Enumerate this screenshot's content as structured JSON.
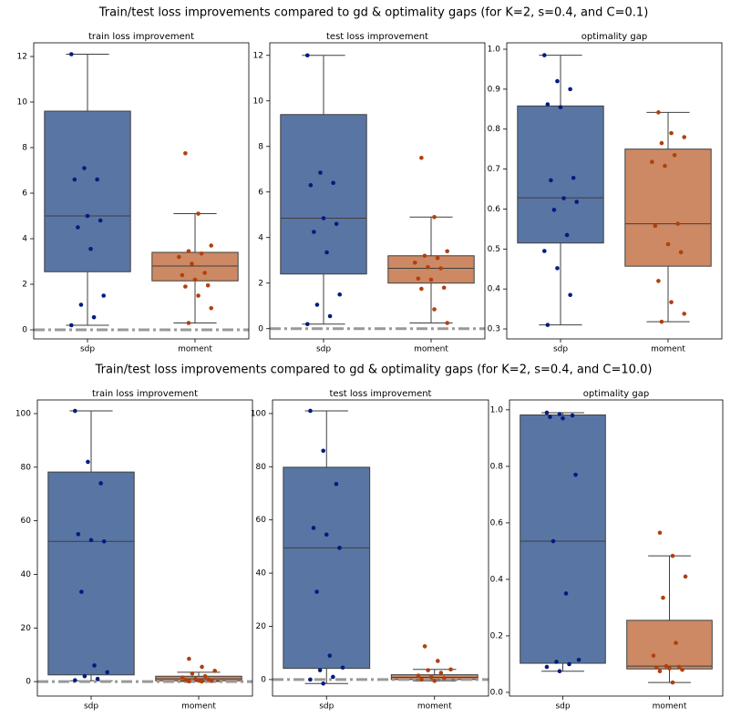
{
  "titles": [
    "Train/test loss improvements compared to gd & optimality gaps (for K=2, s=0.4, and C=0.1)",
    "Train/test loss improvements compared to gd & optimality gaps (for K=2, s=0.4, and C=10.0)"
  ],
  "chart_data": [
    {
      "type": "box",
      "title": "train loss improvement",
      "categories": [
        "sdp",
        "moment"
      ],
      "colors": [
        "#5975a4",
        "#cc8963"
      ],
      "point_colors": [
        "#001c7f",
        "#b1400d"
      ],
      "ylim": [
        -0.4,
        12.6
      ],
      "yticks": [
        0,
        2,
        4,
        6,
        8,
        10,
        12
      ],
      "hline": 0,
      "boxes": [
        {
          "whislo": 0.2,
          "q1": 2.55,
          "med": 5.0,
          "q3": 9.6,
          "whishi": 12.1
        },
        {
          "whislo": 0.3,
          "q1": 2.15,
          "med": 2.8,
          "q3": 3.4,
          "whishi": 5.1
        }
      ],
      "points": [
        [
          12.1,
          7.1,
          6.6,
          6.6,
          5.0,
          4.8,
          4.5,
          3.55,
          1.5,
          1.1,
          0.55,
          0.2
        ],
        [
          7.75,
          5.1,
          3.7,
          3.45,
          3.35,
          3.2,
          2.9,
          2.5,
          2.4,
          2.2,
          1.95,
          1.9,
          1.5,
          0.95,
          0.3
        ]
      ]
    },
    {
      "type": "box",
      "title": "test loss improvement",
      "categories": [
        "sdp",
        "moment"
      ],
      "colors": [
        "#5975a4",
        "#cc8963"
      ],
      "point_colors": [
        "#001c7f",
        "#b1400d"
      ],
      "ylim": [
        -0.45,
        12.55
      ],
      "yticks": [
        0,
        2,
        4,
        6,
        8,
        10,
        12
      ],
      "hline": 0,
      "boxes": [
        {
          "whislo": 0.2,
          "q1": 2.4,
          "med": 4.85,
          "q3": 9.4,
          "whishi": 12.0
        },
        {
          "whislo": 0.25,
          "q1": 2.0,
          "med": 2.65,
          "q3": 3.2,
          "whishi": 4.9
        }
      ],
      "points": [
        [
          12.0,
          6.85,
          6.4,
          6.3,
          4.85,
          4.6,
          4.25,
          3.35,
          1.5,
          1.05,
          0.55,
          0.2
        ],
        [
          7.5,
          4.9,
          3.4,
          3.2,
          3.1,
          2.9,
          2.7,
          2.65,
          2.2,
          2.15,
          1.8,
          1.75,
          0.85,
          0.25
        ]
      ]
    },
    {
      "type": "box",
      "title": "optimality gap",
      "categories": [
        "sdp",
        "moment"
      ],
      "colors": [
        "#5975a4",
        "#cc8963"
      ],
      "point_colors": [
        "#001c7f",
        "#b1400d"
      ],
      "ylim": [
        0.275,
        1.016
      ],
      "yticks": [
        0.3,
        0.4,
        0.5,
        0.6,
        0.7,
        0.8,
        0.9,
        {
          "value": 1.0,
          "label": "1.0"
        }
      ],
      "boxes": [
        {
          "whislo": 0.31,
          "q1": 0.515,
          "med": 0.628,
          "q3": 0.858,
          "whishi": 0.985
        },
        {
          "whislo": 0.318,
          "q1": 0.457,
          "med": 0.563,
          "q3": 0.75,
          "whishi": 0.842
        }
      ],
      "points": [
        [
          0.985,
          0.92,
          0.9,
          0.862,
          0.855,
          0.678,
          0.672,
          0.627,
          0.618,
          0.598,
          0.535,
          0.495,
          0.452,
          0.385,
          0.31
        ],
        [
          0.842,
          0.79,
          0.78,
          0.765,
          0.735,
          0.718,
          0.708,
          0.563,
          0.558,
          0.512,
          0.492,
          0.42,
          0.367,
          0.338,
          0.318
        ]
      ]
    },
    {
      "type": "box",
      "title": "train loss improvement",
      "categories": [
        "sdp",
        "moment"
      ],
      "colors": [
        "#5975a4",
        "#cc8963"
      ],
      "point_colors": [
        "#001c7f",
        "#b1400d"
      ],
      "ylim": [
        -5.4,
        105.1
      ],
      "yticks": [
        0,
        20,
        40,
        60,
        80,
        100
      ],
      "hline": 0,
      "boxes": [
        {
          "whislo": 0.3,
          "q1": 2.5,
          "med": 52.3,
          "q3": 78.2,
          "whishi": 101
        },
        {
          "whislo": 0.05,
          "q1": 0.3,
          "med": 1.0,
          "q3": 2.0,
          "whishi": 3.5
        }
      ],
      "points": [
        [
          101,
          82,
          74,
          55,
          52.8,
          52.3,
          33.5,
          6,
          3.5,
          2,
          1,
          0.5
        ],
        [
          8.5,
          5.5,
          4,
          3,
          2,
          1.5,
          1,
          0.8,
          0.6,
          0.4,
          0.3,
          0.1,
          0.05
        ]
      ]
    },
    {
      "type": "box",
      "title": "test loss improvement",
      "categories": [
        "sdp",
        "moment"
      ],
      "colors": [
        "#5975a4",
        "#cc8963"
      ],
      "point_colors": [
        "#001c7f",
        "#b1400d"
      ],
      "ylim": [
        -6.2,
        105.1
      ],
      "yticks": [
        0,
        20,
        40,
        60,
        80,
        100
      ],
      "hline": 0,
      "boxes": [
        {
          "whislo": -1.5,
          "q1": 4.2,
          "med": 49.5,
          "q3": 79.8,
          "whishi": 101
        },
        {
          "whislo": -0.5,
          "q1": 0,
          "med": 0.8,
          "q3": 1.8,
          "whishi": 3.8
        }
      ],
      "points": [
        [
          101,
          86,
          73.5,
          57,
          54.5,
          49.5,
          33,
          9,
          4.5,
          3.5,
          1,
          0,
          -1.5
        ],
        [
          12.5,
          7,
          3.8,
          3.5,
          2.5,
          1.5,
          1,
          0.5,
          0,
          -0.5
        ]
      ]
    },
    {
      "type": "box",
      "title": "optimality gap",
      "categories": [
        "sdp",
        "moment"
      ],
      "colors": [
        "#5975a4",
        "#cc8963"
      ],
      "point_colors": [
        "#001c7f",
        "#b1400d"
      ],
      "ylim": [
        -0.013,
        1.035
      ],
      "yticks": [
        {
          "value": 0,
          "label": "0.0"
        },
        0.2,
        0.4,
        0.6,
        0.8,
        {
          "value": 1.0,
          "label": "1.0"
        }
      ],
      "boxes": [
        {
          "whislo": 0.075,
          "q1": 0.103,
          "med": 0.535,
          "q3": 0.982,
          "whishi": 0.99
        },
        {
          "whislo": 0.035,
          "q1": 0.083,
          "med": 0.093,
          "q3": 0.255,
          "whishi": 0.483
        }
      ],
      "points": [
        [
          0.99,
          0.985,
          0.98,
          0.975,
          0.97,
          0.77,
          0.535,
          0.35,
          0.115,
          0.108,
          0.1,
          0.09,
          0.075
        ],
        [
          0.565,
          0.483,
          0.41,
          0.335,
          0.175,
          0.13,
          0.093,
          0.09,
          0.088,
          0.085,
          0.08,
          0.075,
          0.035
        ]
      ]
    }
  ]
}
